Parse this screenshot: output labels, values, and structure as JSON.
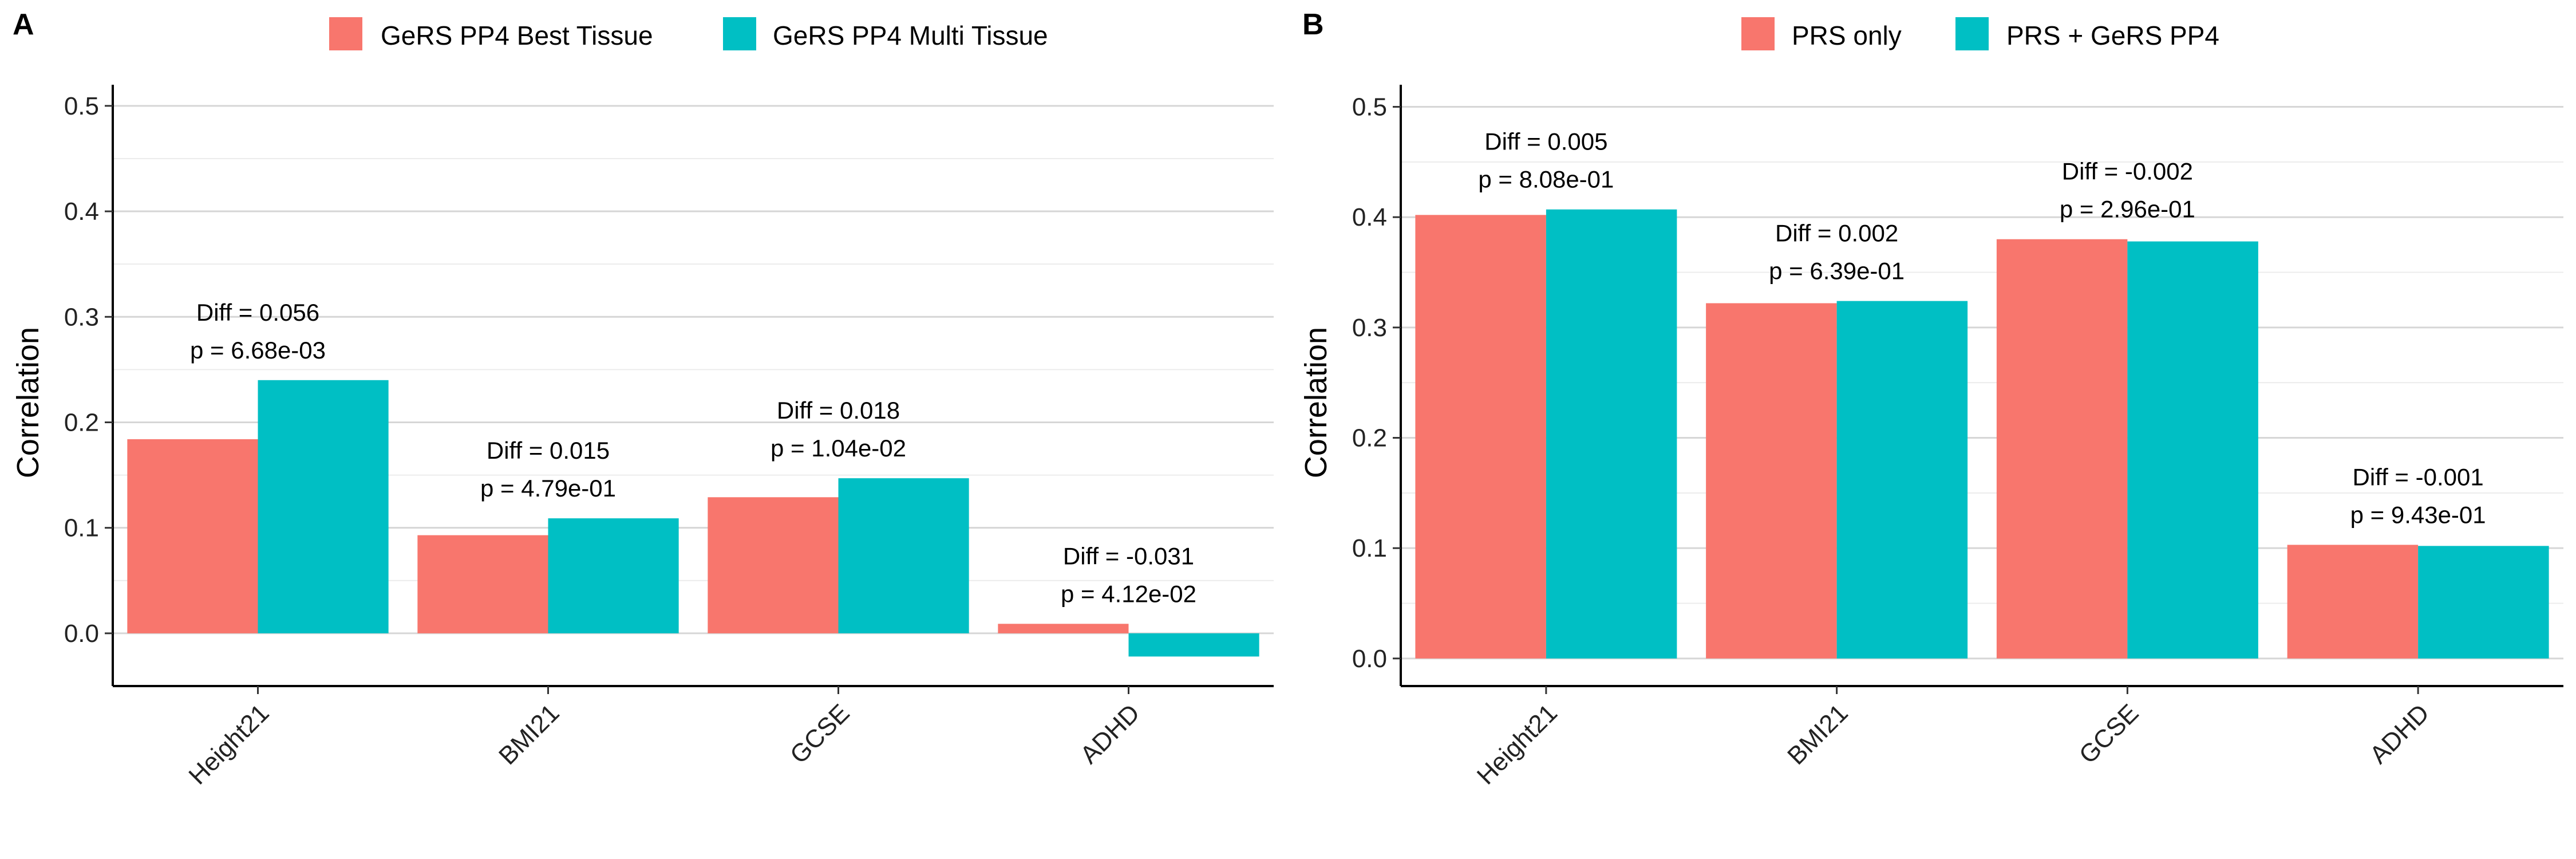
{
  "chart_data": [
    {
      "panel": "A",
      "type": "bar",
      "categories": [
        "Height21",
        "BMI21",
        "GCSE",
        "ADHD"
      ],
      "series": [
        {
          "name": "GeRS PP4 Best Tissue",
          "color": "#F8766D",
          "values": [
            0.184,
            0.093,
            0.129,
            0.009
          ]
        },
        {
          "name": "GeRS PP4 Multi Tissue",
          "color": "#00BFC4",
          "values": [
            0.24,
            0.109,
            0.147,
            -0.022
          ]
        }
      ],
      "annotations": [
        {
          "diff": "Diff = 0.056",
          "p": "p = 6.68e-03"
        },
        {
          "diff": "Diff = 0.015",
          "p": "p = 4.79e-01"
        },
        {
          "diff": "Diff = 0.018",
          "p": "p = 1.04e-02"
        },
        {
          "diff": "Diff = -0.031",
          "p": "p = 4.12e-02"
        }
      ],
      "ylabel": "Correlation",
      "xlabel": "",
      "ylim": [
        -0.05,
        0.52
      ],
      "yticks": [
        0.0,
        0.1,
        0.2,
        0.3,
        0.4,
        0.5
      ],
      "ytick_labels": [
        "0.0",
        "0.1",
        "0.2",
        "0.3",
        "0.4",
        "0.5"
      ],
      "grid": true,
      "legend_position": "top"
    },
    {
      "panel": "B",
      "type": "bar",
      "categories": [
        "Height21",
        "BMI21",
        "GCSE",
        "ADHD"
      ],
      "series": [
        {
          "name": "PRS only",
          "color": "#F8766D",
          "values": [
            0.402,
            0.322,
            0.38,
            0.103
          ]
        },
        {
          "name": "PRS + GeRS PP4",
          "color": "#00BFC4",
          "values": [
            0.407,
            0.324,
            0.378,
            0.102
          ]
        }
      ],
      "annotations": [
        {
          "diff": "Diff = 0.005",
          "p": "p = 8.08e-01"
        },
        {
          "diff": "Diff = 0.002",
          "p": "p = 6.39e-01"
        },
        {
          "diff": "Diff = -0.002",
          "p": "p = 2.96e-01"
        },
        {
          "diff": "Diff = -0.001",
          "p": "p = 9.43e-01"
        }
      ],
      "ylabel": "Correlation",
      "xlabel": "",
      "ylim": [
        -0.025,
        0.52
      ],
      "yticks": [
        0.0,
        0.1,
        0.2,
        0.3,
        0.4,
        0.5
      ],
      "ytick_labels": [
        "0.0",
        "0.1",
        "0.2",
        "0.3",
        "0.4",
        "0.5"
      ],
      "grid": true,
      "legend_position": "top"
    }
  ]
}
